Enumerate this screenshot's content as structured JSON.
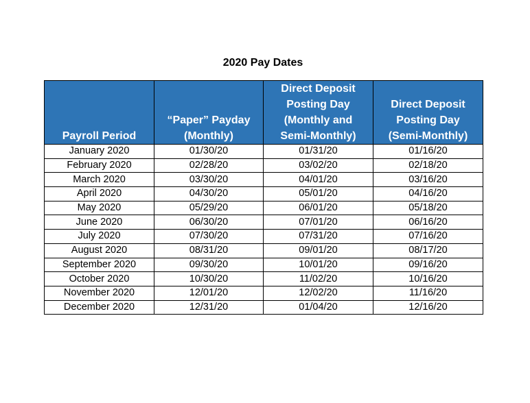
{
  "title": "2020 Pay Dates",
  "headers": [
    [
      "Payroll Period"
    ],
    [
      "“Paper” Payday",
      "(Monthly)"
    ],
    [
      "Direct Deposit",
      "Posting Day",
      "(Monthly and",
      "Semi-Monthly)"
    ],
    [
      "Direct Deposit",
      "Posting Day",
      "(Semi-Monthly)"
    ]
  ],
  "rows": [
    [
      "January 2020",
      "01/30/20",
      "01/31/20",
      "01/16/20"
    ],
    [
      "February 2020",
      "02/28/20",
      "03/02/20",
      "02/18/20"
    ],
    [
      "March 2020",
      "03/30/20",
      "04/01/20",
      "03/16/20"
    ],
    [
      "April 2020",
      "04/30/20",
      "05/01/20",
      "04/16/20"
    ],
    [
      "May 2020",
      "05/29/20",
      "06/01/20",
      "05/18/20"
    ],
    [
      "June 2020",
      "06/30/20",
      "07/01/20",
      "06/16/20"
    ],
    [
      "July 2020",
      "07/30/20",
      "07/31/20",
      "07/16/20"
    ],
    [
      "August 2020",
      "08/31/20",
      "09/01/20",
      "08/17/20"
    ],
    [
      "September 2020",
      "09/30/20",
      "10/01/20",
      "09/16/20"
    ],
    [
      "October 2020",
      "10/30/20",
      "11/02/20",
      "10/16/20"
    ],
    [
      "November 2020",
      "12/01/20",
      "12/02/20",
      "11/16/20"
    ],
    [
      "December 2020",
      "12/31/20",
      "01/04/20",
      "12/16/20"
    ]
  ],
  "colors": {
    "header_background": "#2e75b6",
    "header_text": "#ffffff",
    "border": "#000000"
  }
}
